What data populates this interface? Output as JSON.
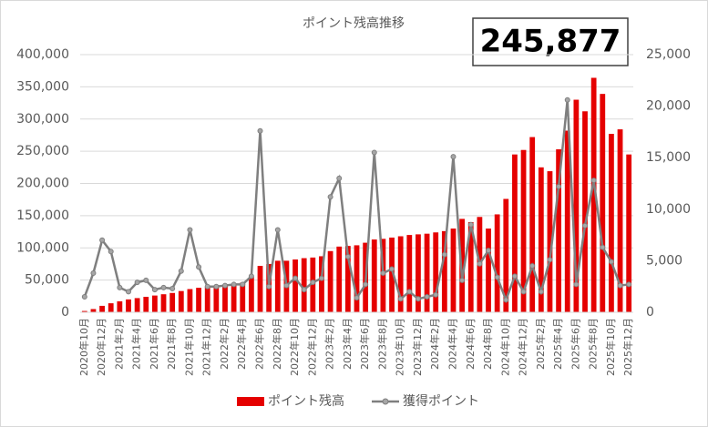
{
  "chart_data": {
    "type": "combo",
    "title": "ポイント残高推移",
    "annotation": "245,877",
    "categories": [
      "2020年10月",
      null,
      "2020年12月",
      null,
      "2021年2月",
      null,
      "2021年4月",
      null,
      "2021年6月",
      null,
      "2021年8月",
      null,
      "2021年10月",
      null,
      "2021年12月",
      null,
      "2022年2月",
      null,
      "2022年4月",
      null,
      "2022年6月",
      null,
      "2022年8月",
      null,
      "2022年10月",
      null,
      "2022年12月",
      null,
      "2023年2月",
      null,
      "2023年4月",
      null,
      "2023年6月",
      null,
      "2023年8月",
      null,
      "2023年10月",
      null,
      "2023年12月",
      null,
      "2024年2月",
      null,
      "2024年4月",
      null,
      "2024年6月",
      null,
      "2024年8月",
      null,
      "2024年10月",
      null,
      "2024年12月",
      null,
      "2025年2月",
      null,
      "2025年4月",
      null,
      "2025年6月",
      null,
      "2025年8月",
      null,
      "2025年10月",
      null,
      "2025年12月"
    ],
    "series": [
      {
        "name": "ポイント残高",
        "type": "bar",
        "axis": "y",
        "color": "#e50000",
        "values": [
          2000,
          5000,
          10000,
          14000,
          17000,
          20000,
          22000,
          24000,
          26000,
          28000,
          30000,
          33000,
          36000,
          38000,
          39000,
          40000,
          42000,
          44000,
          46000,
          55000,
          72000,
          75000,
          80000,
          80000,
          82000,
          84000,
          85000,
          87000,
          95000,
          102000,
          103000,
          104000,
          108000,
          113000,
          114000,
          116000,
          118000,
          120000,
          121000,
          122000,
          124000,
          126000,
          130000,
          145000,
          140000,
          148000,
          130000,
          152000,
          176000,
          245000,
          252000,
          272000,
          225000,
          219000,
          253000,
          282000,
          330000,
          312000,
          364000,
          339000,
          277000,
          284000,
          245000
        ]
      },
      {
        "name": "獲得ポイント",
        "type": "line",
        "axis": "y2",
        "color": "#7f7f7f",
        "values": [
          1500,
          3800,
          7000,
          5900,
          2400,
          2000,
          2900,
          3100,
          2200,
          2400,
          2300,
          4000,
          8000,
          4400,
          2500,
          2500,
          2600,
          2700,
          2700,
          3500,
          17600,
          2500,
          8000,
          2600,
          3300,
          2200,
          2900,
          3300,
          11200,
          13000,
          5400,
          1400,
          2700,
          15500,
          3800,
          4200,
          1300,
          2000,
          1300,
          1500,
          1700,
          5600,
          15100,
          3100,
          8500,
          4700,
          6000,
          3400,
          1200,
          3500,
          2000,
          4500,
          2000,
          5100,
          12200,
          20600,
          2700,
          8400,
          12800,
          6300,
          4900,
          2600,
          2700
        ]
      }
    ],
    "ylim": [
      0,
      400000
    ],
    "yticks": [
      0,
      {
        "value": 50000,
        "label": "50,000"
      },
      {
        "value": 100000,
        "label": "100,000"
      },
      {
        "value": 150000,
        "label": "150,000"
      },
      {
        "value": 200000,
        "label": "200,000"
      },
      {
        "value": 250000,
        "label": "250,000"
      },
      {
        "value": 300000,
        "label": "300,000"
      },
      {
        "value": 350000,
        "label": "350,000"
      },
      {
        "value": 400000,
        "label": "400,000"
      }
    ],
    "y2lim": [
      0,
      25000
    ],
    "y2ticks": [
      0,
      {
        "value": 5000,
        "label": "5,000"
      },
      {
        "value": 10000,
        "label": "10,000"
      },
      {
        "value": 15000,
        "label": "15,000"
      },
      {
        "value": 20000,
        "label": "20,000"
      },
      {
        "value": 25000,
        "label": "25,000"
      }
    ],
    "legend": "bottom"
  }
}
